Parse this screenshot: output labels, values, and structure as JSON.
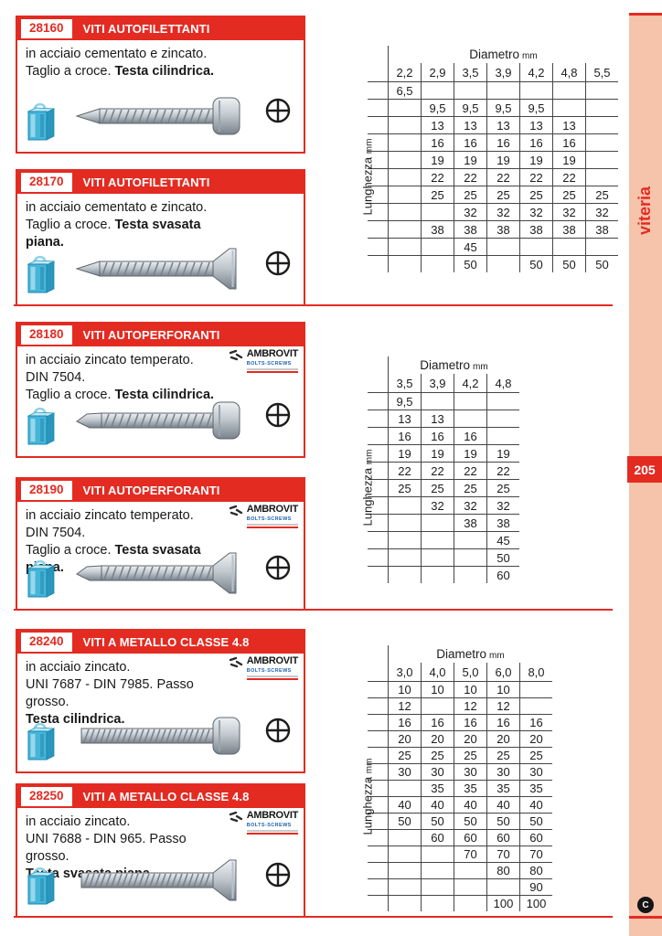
{
  "page": {
    "sidebar_label": "viteria",
    "page_number": "205",
    "brand_circle_letter": "C",
    "colors": {
      "red": "#e32b22",
      "salmon": "#f6c3ab"
    }
  },
  "logo": {
    "name": "AMBROVIT",
    "sub": "BOLTS-SCREWS"
  },
  "table_header": {
    "diametro": "Diametro",
    "diametro_unit": "mm",
    "lunghezza": "Lunghezza",
    "lunghezza_unit": "mm"
  },
  "sections": [
    {
      "code": "28160",
      "title": "VITI AUTOFILETTANTI",
      "lines": [
        {
          "pre": "in acciaio cementato e zincato.",
          "bold": ""
        },
        {
          "pre": "Taglio a croce. ",
          "bold": "Testa cilindrica."
        }
      ],
      "has_logo": false,
      "screw": {
        "head": "pan",
        "tip": "point",
        "thread": "coarse"
      }
    },
    {
      "code": "28170",
      "title": "VITI AUTOFILETTANTI",
      "lines": [
        {
          "pre": "in acciaio cementato e zincato.",
          "bold": ""
        },
        {
          "pre": "Taglio a croce. ",
          "bold": "Testa svasata piana."
        }
      ],
      "has_logo": false,
      "screw": {
        "head": "flat",
        "tip": "point",
        "thread": "coarse"
      }
    },
    {
      "code": "28180",
      "title": "VITI AUTOPERFORANTI",
      "lines": [
        {
          "pre": "in acciaio zincato temperato.",
          "bold": ""
        },
        {
          "pre": "DIN 7504.",
          "bold": ""
        },
        {
          "pre": "Taglio a croce. ",
          "bold": "Testa cilindrica."
        }
      ],
      "has_logo": true,
      "screw": {
        "head": "pan",
        "tip": "drill",
        "thread": "coarse"
      }
    },
    {
      "code": "28190",
      "title": "VITI AUTOPERFORANTI",
      "lines": [
        {
          "pre": "in acciaio zincato temperato.",
          "bold": ""
        },
        {
          "pre": "DIN 7504.",
          "bold": ""
        },
        {
          "pre": "Taglio a croce. ",
          "bold": "Testa svasata piana."
        }
      ],
      "has_logo": true,
      "screw": {
        "head": "flat",
        "tip": "drill",
        "thread": "coarse"
      }
    },
    {
      "code": "28240",
      "title": "VITI A METALLO CLASSE 4.8",
      "lines": [
        {
          "pre": "in acciaio zincato.",
          "bold": ""
        },
        {
          "pre": "UNI 7687 - DIN 7985. Passo grosso.",
          "bold": ""
        },
        {
          "pre": "",
          "bold": "Testa cilindrica."
        }
      ],
      "has_logo": true,
      "screw": {
        "head": "pan",
        "tip": "blunt",
        "thread": "fine"
      }
    },
    {
      "code": "28250",
      "title": "VITI A METALLO CLASSE 4.8",
      "lines": [
        {
          "pre": "in acciaio zincato.",
          "bold": ""
        },
        {
          "pre": "UNI 7688 - DIN 965. Passo grosso.",
          "bold": ""
        },
        {
          "pre": "",
          "bold": "Testa svasata piana."
        }
      ],
      "has_logo": true,
      "screw": {
        "head": "flat",
        "tip": "blunt",
        "thread": "fine"
      }
    }
  ],
  "tables": [
    {
      "columns": [
        "2,2",
        "2,9",
        "3,5",
        "3,9",
        "4,2",
        "4,8",
        "5,5"
      ],
      "rows": [
        [
          "6,5",
          "",
          "",
          "",
          "",
          "",
          ""
        ],
        [
          "",
          "9,5",
          "9,5",
          "9,5",
          "9,5",
          "",
          ""
        ],
        [
          "",
          "13",
          "13",
          "13",
          "13",
          "13",
          ""
        ],
        [
          "",
          "16",
          "16",
          "16",
          "16",
          "16",
          ""
        ],
        [
          "",
          "19",
          "19",
          "19",
          "19",
          "19",
          ""
        ],
        [
          "",
          "22",
          "22",
          "22",
          "22",
          "22",
          ""
        ],
        [
          "",
          "25",
          "25",
          "25",
          "25",
          "25",
          "25"
        ],
        [
          "",
          "",
          "32",
          "32",
          "32",
          "32",
          "32"
        ],
        [
          "",
          "38",
          "38",
          "38",
          "38",
          "38",
          "38"
        ],
        [
          "",
          "",
          "45",
          "",
          "",
          "",
          ""
        ],
        [
          "",
          "",
          "50",
          "",
          "50",
          "50",
          "50"
        ]
      ]
    },
    {
      "columns": [
        "3,5",
        "3,9",
        "4,2",
        "4,8"
      ],
      "rows": [
        [
          "9,5",
          "",
          "",
          ""
        ],
        [
          "13",
          "13",
          "",
          ""
        ],
        [
          "16",
          "16",
          "16",
          ""
        ],
        [
          "19",
          "19",
          "19",
          "19"
        ],
        [
          "22",
          "22",
          "22",
          "22"
        ],
        [
          "25",
          "25",
          "25",
          "25"
        ],
        [
          "",
          "32",
          "32",
          "32"
        ],
        [
          "",
          "",
          "38",
          "38"
        ],
        [
          "",
          "",
          "",
          "45"
        ],
        [
          "",
          "",
          "",
          "50"
        ],
        [
          "",
          "",
          "",
          "60"
        ]
      ]
    },
    {
      "columns": [
        "3,0",
        "4,0",
        "5,0",
        "6,0",
        "8,0"
      ],
      "rows": [
        [
          "10",
          "10",
          "10",
          "10",
          ""
        ],
        [
          "12",
          "",
          "12",
          "12",
          ""
        ],
        [
          "16",
          "16",
          "16",
          "16",
          "16"
        ],
        [
          "20",
          "20",
          "20",
          "20",
          "20"
        ],
        [
          "25",
          "25",
          "25",
          "25",
          "25"
        ],
        [
          "30",
          "30",
          "30",
          "30",
          "30"
        ],
        [
          "",
          "35",
          "35",
          "35",
          "35"
        ],
        [
          "40",
          "40",
          "40",
          "40",
          "40"
        ],
        [
          "50",
          "50",
          "50",
          "50",
          "50"
        ],
        [
          "",
          "60",
          "60",
          "60",
          "60"
        ],
        [
          "",
          "",
          "70",
          "70",
          "70"
        ],
        [
          "",
          "",
          "",
          "80",
          "80"
        ],
        [
          "",
          "",
          "",
          "",
          "90"
        ],
        [
          "",
          "",
          "",
          "100",
          "100"
        ]
      ]
    }
  ]
}
